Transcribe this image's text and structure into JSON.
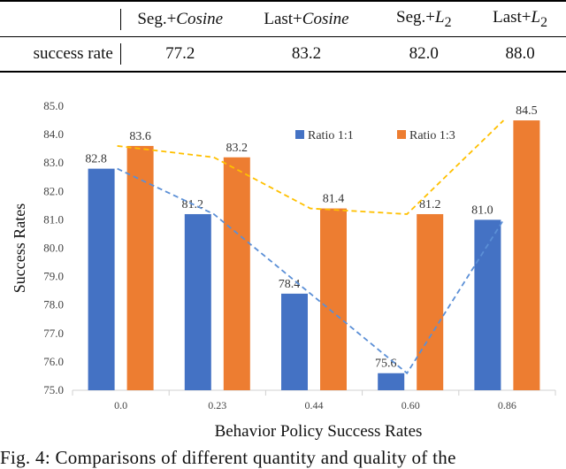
{
  "table": {
    "headers": [
      {
        "main": "Seg.+",
        "italic": "Cosine"
      },
      {
        "main": "Last+",
        "italic": "Cosine"
      },
      {
        "main": "Seg.+",
        "italic": "L",
        "sub": "2"
      },
      {
        "main": "Last+",
        "italic": "L",
        "sub": "2"
      }
    ],
    "row_label": "success rate",
    "values": [
      "77.2",
      "83.2",
      "82.0",
      "88.0"
    ]
  },
  "chart_data": {
    "type": "bar",
    "xlabel": "Behavior Policy Success Rates",
    "ylabel": "Success Rates",
    "categories": [
      "0.0",
      "0.23",
      "0.44",
      "0.60",
      "0.86"
    ],
    "ylim": [
      75.0,
      85.0
    ],
    "yticks": [
      "75.0",
      "76.0",
      "77.0",
      "78.0",
      "79.0",
      "80.0",
      "81.0",
      "82.0",
      "83.0",
      "84.0",
      "85.0"
    ],
    "legend_position": "top-center",
    "series": [
      {
        "name": "Ratio 1:1",
        "values": [
          82.8,
          81.2,
          78.4,
          75.6,
          81.0
        ],
        "labels": [
          "82.8",
          "81.2",
          "78.4",
          "75.6",
          "81.0"
        ],
        "color": "#4472C4",
        "trend_color": "#5B8FD6"
      },
      {
        "name": "Ratio 1:3",
        "values": [
          83.6,
          83.2,
          81.4,
          81.2,
          84.5
        ],
        "labels": [
          "83.6",
          "83.2",
          "81.4",
          "81.2",
          "84.5"
        ],
        "color": "#ED7D31",
        "trend_color": "#FFC000"
      }
    ]
  },
  "caption": "Fig. 4: Comparisons of different quantity and quality of the"
}
